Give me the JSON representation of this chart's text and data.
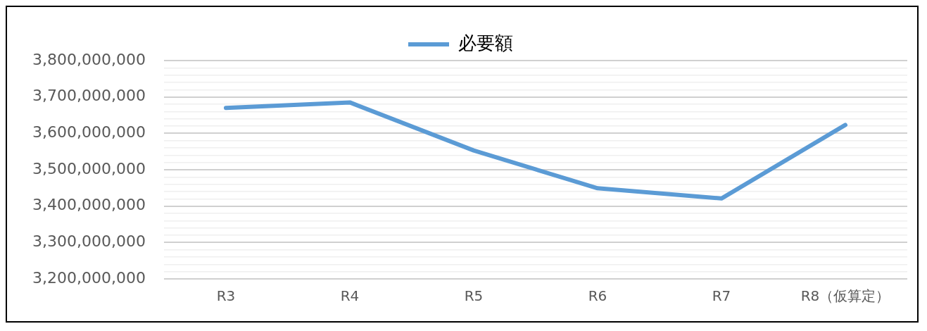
{
  "chart_data": {
    "type": "line",
    "categories": [
      "R3",
      "R4",
      "R5",
      "R6",
      "R7",
      "R8（仮算定）"
    ],
    "series": [
      {
        "name": "必要額",
        "color": "#5b9bd5",
        "values": [
          3670000000,
          3685000000,
          3553000000,
          3449000000,
          3421000000,
          3623000000
        ]
      }
    ],
    "ylim": [
      3200000000,
      3800000000
    ],
    "yticks": [
      {
        "value": 3200000000,
        "label": "3,200,000,000"
      },
      {
        "value": 3220000000,
        "label": null
      },
      {
        "value": 3240000000,
        "label": null
      },
      {
        "value": 3260000000,
        "label": null
      },
      {
        "value": 3280000000,
        "label": null
      },
      {
        "value": 3300000000,
        "label": "3,300,000,000"
      },
      {
        "value": 3320000000,
        "label": null
      },
      {
        "value": 3340000000,
        "label": null
      },
      {
        "value": 3360000000,
        "label": null
      },
      {
        "value": 3380000000,
        "label": null
      },
      {
        "value": 3400000000,
        "label": "3,400,000,000"
      },
      {
        "value": 3420000000,
        "label": null
      },
      {
        "value": 3440000000,
        "label": null
      },
      {
        "value": 3460000000,
        "label": null
      },
      {
        "value": 3480000000,
        "label": null
      },
      {
        "value": 3500000000,
        "label": "3,500,000,000"
      },
      {
        "value": 3520000000,
        "label": null
      },
      {
        "value": 3540000000,
        "label": null
      },
      {
        "value": 3560000000,
        "label": null
      },
      {
        "value": 3580000000,
        "label": null
      },
      {
        "value": 3600000000,
        "label": "3,600,000,000"
      },
      {
        "value": 3620000000,
        "label": null
      },
      {
        "value": 3640000000,
        "label": null
      },
      {
        "value": 3660000000,
        "label": null
      },
      {
        "value": 3680000000,
        "label": null
      },
      {
        "value": 3700000000,
        "label": "3,700,000,000"
      },
      {
        "value": 3720000000,
        "label": null
      },
      {
        "value": 3740000000,
        "label": null
      },
      {
        "value": 3760000000,
        "label": null
      },
      {
        "value": 3780000000,
        "label": null
      },
      {
        "value": 3800000000,
        "label": "3,800,000,000"
      }
    ],
    "grid": "y",
    "legend": "top",
    "marker": "none",
    "line_style": "solid"
  }
}
